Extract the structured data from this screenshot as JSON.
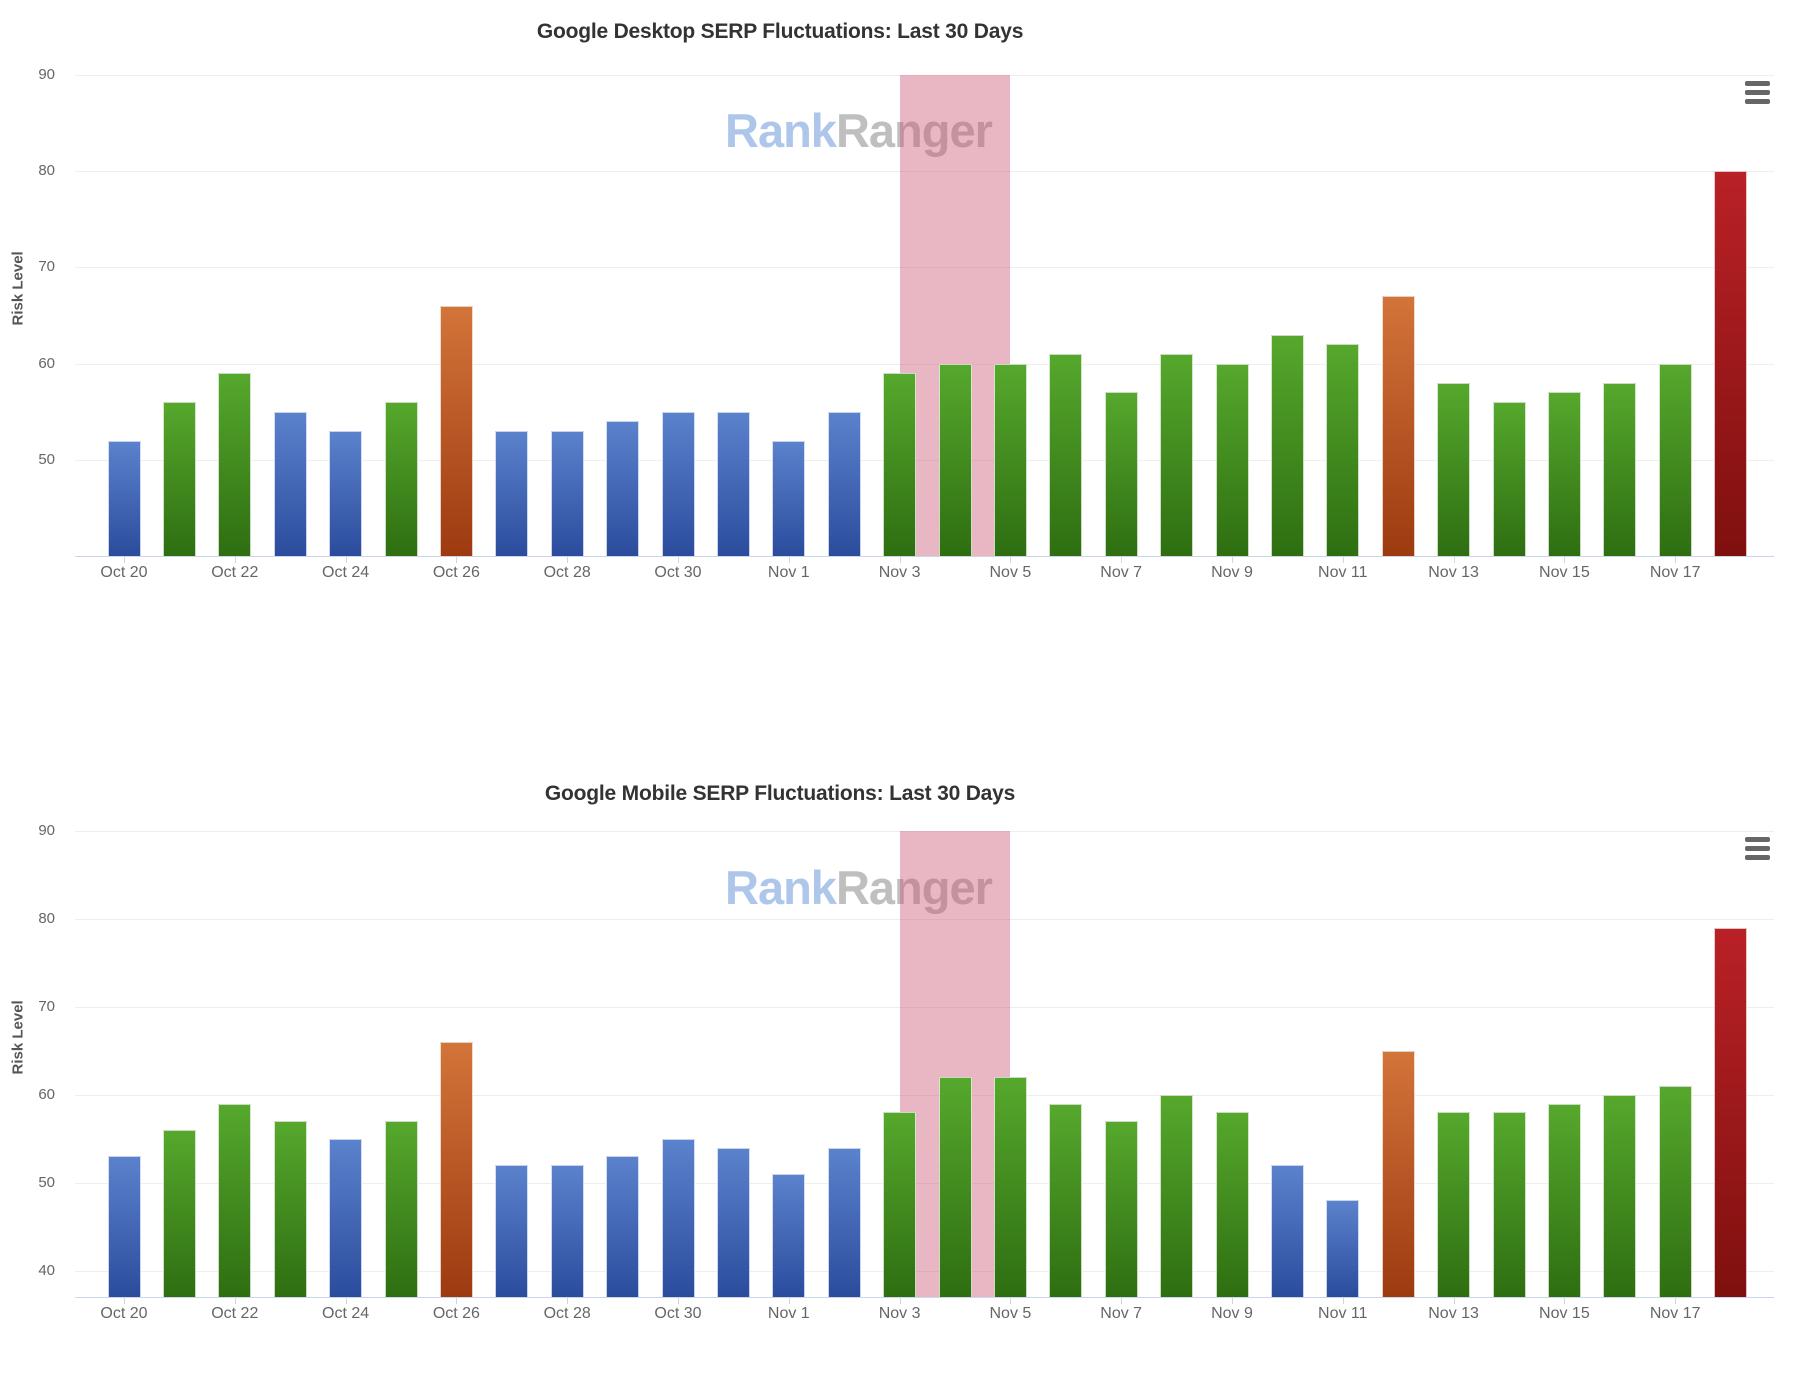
{
  "page": {
    "background": "#ffffff"
  },
  "watermark": {
    "part1": "Rank",
    "part2": "Ranger",
    "color1": "#a9c3e9",
    "color2": "#bcbcbc"
  },
  "icons": {
    "chart_menu": "hamburger-menu"
  },
  "colors": {
    "blue_top": "#5b82cd",
    "blue_bottom": "#2b4c9d",
    "green_top": "#56a82d",
    "green_bottom": "#2e6e11",
    "orange_top": "#d3743a",
    "orange_bottom": "#9d3a10",
    "red_top": "#b92126",
    "red_bottom": "#7f100e",
    "band": "rgba(201,84,111,0.42)",
    "grid": "#eeeeee",
    "axis_line": "#ccd6eb",
    "tick_label": "#666666",
    "title": "#333333",
    "hamburger": "#666666"
  },
  "chart_data": [
    {
      "type": "bar",
      "title": "Google Desktop SERP Fluctuations: Last 30 Days",
      "xlabel": "",
      "ylabel": "Risk Level",
      "ylim": [
        40,
        90
      ],
      "yticks": [
        50,
        60,
        70,
        80,
        90
      ],
      "xtick_every": 2,
      "grid": true,
      "legend": false,
      "highlight_band": {
        "from": "Nov 3",
        "to": "Nov 5"
      },
      "categories": [
        "Oct 20",
        "Oct 21",
        "Oct 22",
        "Oct 23",
        "Oct 24",
        "Oct 25",
        "Oct 26",
        "Oct 27",
        "Oct 28",
        "Oct 29",
        "Oct 30",
        "Oct 31",
        "Nov 1",
        "Nov 2",
        "Nov 3",
        "Nov 4",
        "Nov 5",
        "Nov 6",
        "Nov 7",
        "Nov 8",
        "Nov 9",
        "Nov 10",
        "Nov 11",
        "Nov 12",
        "Nov 13",
        "Nov 14",
        "Nov 15",
        "Nov 16",
        "Nov 17",
        "Nov 18"
      ],
      "values": [
        52,
        56,
        59,
        55,
        53,
        56,
        66,
        53,
        53,
        54,
        55,
        55,
        52,
        55,
        59,
        60,
        60,
        61,
        57,
        61,
        60,
        63,
        62,
        67,
        58,
        56,
        57,
        58,
        60,
        80
      ],
      "bar_colors": [
        "blue",
        "green",
        "green",
        "blue",
        "blue",
        "green",
        "orange",
        "blue",
        "blue",
        "blue",
        "blue",
        "blue",
        "blue",
        "blue",
        "green",
        "green",
        "green",
        "green",
        "green",
        "green",
        "green",
        "green",
        "green",
        "orange",
        "green",
        "green",
        "green",
        "green",
        "green",
        "red"
      ]
    },
    {
      "type": "bar",
      "title": "Google Mobile SERP Fluctuations: Last 30 Days",
      "xlabel": "",
      "ylabel": "Risk Level",
      "ylim": [
        37,
        90
      ],
      "yticks": [
        40,
        50,
        60,
        70,
        80,
        90
      ],
      "xtick_every": 2,
      "grid": true,
      "legend": false,
      "highlight_band": {
        "from": "Nov 3",
        "to": "Nov 5"
      },
      "categories": [
        "Oct 20",
        "Oct 21",
        "Oct 22",
        "Oct 23",
        "Oct 24",
        "Oct 25",
        "Oct 26",
        "Oct 27",
        "Oct 28",
        "Oct 29",
        "Oct 30",
        "Oct 31",
        "Nov 1",
        "Nov 2",
        "Nov 3",
        "Nov 4",
        "Nov 5",
        "Nov 6",
        "Nov 7",
        "Nov 8",
        "Nov 9",
        "Nov 10",
        "Nov 11",
        "Nov 12",
        "Nov 13",
        "Nov 14",
        "Nov 15",
        "Nov 16",
        "Nov 17",
        "Nov 18"
      ],
      "values": [
        53,
        56,
        59,
        57,
        55,
        57,
        66,
        52,
        52,
        53,
        55,
        54,
        51,
        54,
        58,
        62,
        62,
        59,
        57,
        60,
        58,
        52,
        48,
        65,
        58,
        58,
        59,
        60,
        61,
        79
      ],
      "bar_colors": [
        "blue",
        "green",
        "green",
        "green",
        "blue",
        "green",
        "orange",
        "blue",
        "blue",
        "blue",
        "blue",
        "blue",
        "blue",
        "blue",
        "green",
        "green",
        "green",
        "green",
        "green",
        "green",
        "green",
        "blue",
        "blue",
        "orange",
        "green",
        "green",
        "green",
        "green",
        "green",
        "red"
      ]
    }
  ]
}
